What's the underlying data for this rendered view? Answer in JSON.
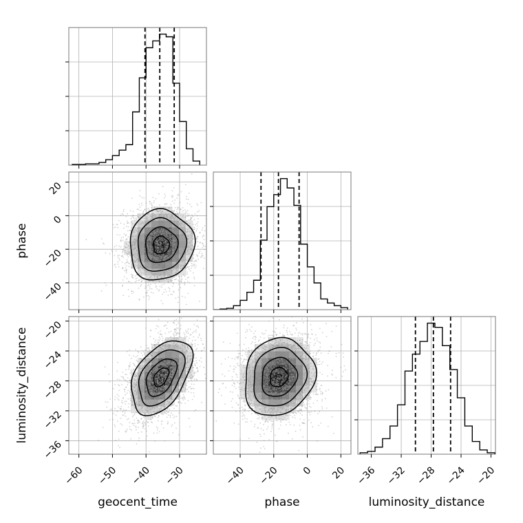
{
  "chart_data": {
    "type": "corner",
    "parameters": [
      "geocent_time",
      "phase",
      "luminosity_distance"
    ],
    "axis_labels": {
      "geocent_time": "geocent_time",
      "phase": "phase",
      "luminosity_distance": "luminosity_distance"
    },
    "ranges": {
      "geocent_time": [
        -63,
        -22
      ],
      "phase": [
        -56,
        26
      ],
      "luminosity_distance": [
        -37.8,
        -19.4
      ]
    },
    "ticks": {
      "geocent_time": [
        -60,
        -50,
        -40,
        -30
      ],
      "phase": [
        -40,
        -20,
        0,
        20
      ],
      "luminosity_distance": [
        -36,
        -32,
        -28,
        -24,
        -20
      ]
    },
    "tick_labels": {
      "geocent_time": [
        "−60",
        "−50",
        "−40",
        "−30"
      ],
      "phase": [
        "−40",
        "−20",
        "0",
        "20"
      ],
      "luminosity_distance": [
        "−36",
        "−32",
        "−28",
        "−24",
        "−20"
      ]
    },
    "quantiles": {
      "geocent_time": [
        -40.3,
        -35.9,
        -31.6
      ],
      "phase": [
        -27.6,
        -17.2,
        -4.9
      ],
      "luminosity_distance": [
        -30.1,
        -27.7,
        -25.4
      ]
    },
    "histograms": {
      "geocent_time": {
        "edges": [
          -62,
          -60,
          -58,
          -56,
          -54,
          -52,
          -50,
          -48,
          -46,
          -44,
          -42,
          -40,
          -38,
          -36,
          -34,
          -32,
          -30,
          -28,
          -26,
          -24
        ],
        "counts": [
          0.005,
          0.005,
          0.01,
          0.01,
          0.02,
          0.04,
          0.07,
          0.11,
          0.15,
          0.39,
          0.64,
          0.86,
          0.91,
          0.96,
          0.94,
          0.6,
          0.32,
          0.12,
          0.03
        ]
      },
      "phase": {
        "edges": [
          -56,
          -52,
          -48,
          -44,
          -40,
          -36,
          -32,
          -28,
          -24,
          -20,
          -16,
          -12,
          -8,
          -4,
          0,
          4,
          8,
          12,
          16,
          20,
          24
        ],
        "counts": [
          0.0,
          0.005,
          0.01,
          0.03,
          0.07,
          0.13,
          0.22,
          0.52,
          0.77,
          0.86,
          0.98,
          0.91,
          0.78,
          0.49,
          0.32,
          0.2,
          0.08,
          0.05,
          0.03,
          0.015
        ]
      },
      "luminosity_distance": {
        "edges": [
          -37.5,
          -36.5,
          -35.5,
          -34.5,
          -33.5,
          -32.5,
          -31.5,
          -30.5,
          -29.5,
          -28.5,
          -27.5,
          -26.5,
          -25.5,
          -24.5,
          -23.5,
          -22.5,
          -21.5,
          -20.5,
          -19.5
        ],
        "counts": [
          0.01,
          0.02,
          0.05,
          0.11,
          0.2,
          0.35,
          0.59,
          0.71,
          0.8,
          0.93,
          0.9,
          0.77,
          0.6,
          0.4,
          0.2,
          0.09,
          0.03,
          0.01
        ]
      }
    },
    "joint": [
      {
        "x": "geocent_time",
        "y": "phase",
        "center": [
          -35.5,
          -17.5
        ],
        "sigma": [
          4.8,
          10.5
        ],
        "rho": 0.05,
        "contour_levels_sigma": [
          0.5,
          1.0,
          1.5,
          2.0
        ]
      },
      {
        "x": "geocent_time",
        "y": "luminosity_distance",
        "center": [
          -35.5,
          -27.5
        ],
        "sigma": [
          4.5,
          2.5
        ],
        "rho": 0.45,
        "contour_levels_sigma": [
          0.5,
          1.0,
          1.5,
          2.0
        ]
      },
      {
        "x": "phase",
        "y": "luminosity_distance",
        "center": [
          -17.0,
          -27.5
        ],
        "sigma": [
          10.5,
          2.6
        ],
        "rho": 0.12,
        "contour_levels_sigma": [
          0.5,
          1.0,
          1.5,
          2.0
        ]
      }
    ],
    "grid": true
  }
}
